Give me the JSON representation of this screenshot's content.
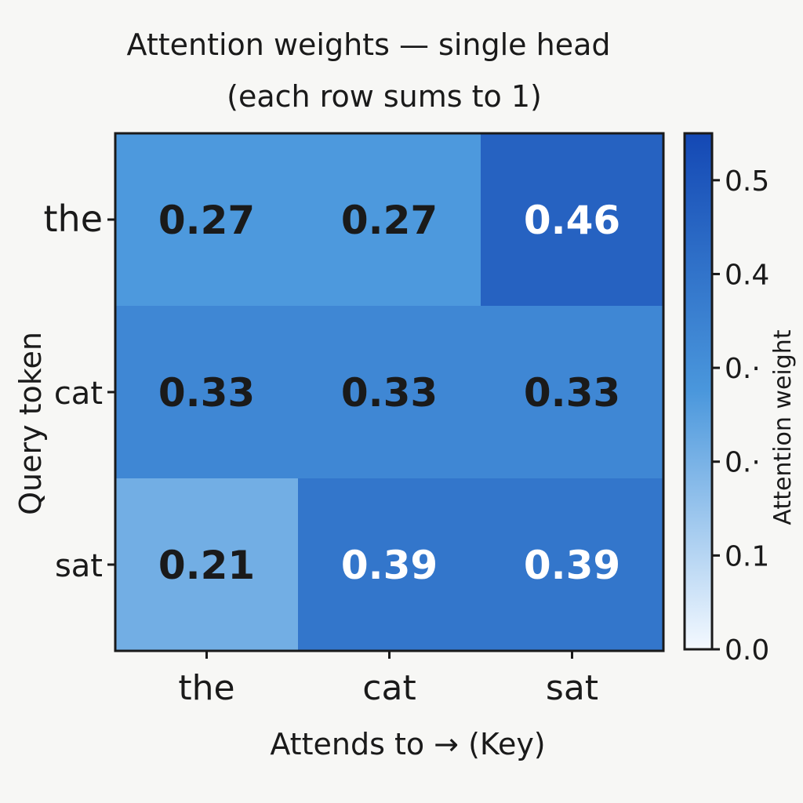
{
  "chart_data": {
    "type": "heatmap",
    "title": "Attention weights — single head",
    "subtitle": "(each row sums to 1)",
    "xlabel": "Attends to → (Key)",
    "ylabel": "Query token",
    "x_categories": [
      "the",
      "cat",
      "sat"
    ],
    "y_categories": [
      "the",
      "cat",
      "sat"
    ],
    "values": [
      [
        0.27,
        0.27,
        0.46
      ],
      [
        0.33,
        0.33,
        0.33
      ],
      [
        0.21,
        0.39,
        0.39
      ]
    ],
    "value_labels": [
      [
        "0.27",
        "0.27",
        "0.46"
      ],
      [
        "0.33",
        "0.33",
        "0.33"
      ],
      [
        "0.21",
        "0.39",
        "0.39"
      ]
    ],
    "colorbar": {
      "label": "Attention weight",
      "range": [
        0.0,
        0.55
      ],
      "ticks": [
        0.0,
        0.1,
        0.2,
        0.3,
        0.4,
        0.5
      ],
      "tick_labels": [
        "0.0",
        "0.1",
        "0.·",
        "0.·",
        "0.4",
        "0.5"
      ]
    },
    "colors": {
      "low": "#f4f9ff",
      "mid": "#4a97dc",
      "high": "#1448b4",
      "text_dark": "#1a1a1a",
      "text_light": "#ffffff"
    }
  }
}
